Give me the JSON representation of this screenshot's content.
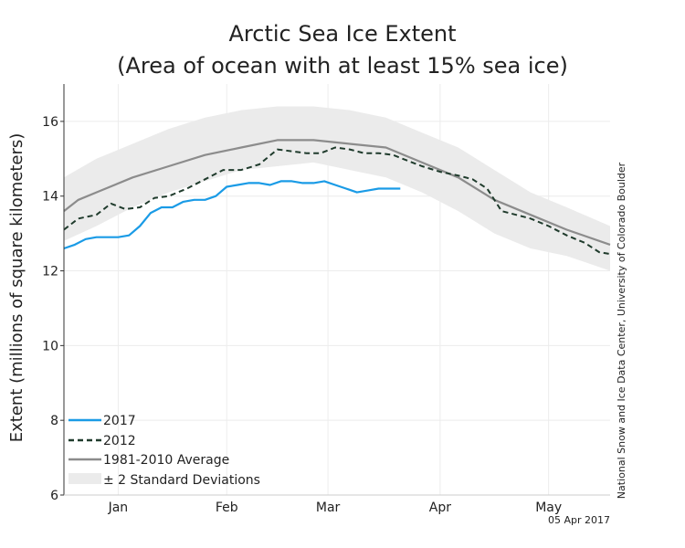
{
  "chart_data": {
    "type": "line",
    "title": "Arctic Sea Ice Extent",
    "subtitle": "(Area of ocean with at least 15% sea ice)",
    "ylabel": "Extent (millions of square kilometers)",
    "xlabel": "",
    "ylim": [
      6,
      17
    ],
    "yticks": [
      6,
      8,
      10,
      12,
      14,
      16
    ],
    "xlim": [
      1,
      152
    ],
    "xticks": [
      {
        "label": "Jan",
        "day": 16
      },
      {
        "label": "Feb",
        "day": 46
      },
      {
        "label": "Mar",
        "day": 74
      },
      {
        "label": "Apr",
        "day": 105
      },
      {
        "label": "May",
        "day": 135
      }
    ],
    "grid": true,
    "legend_position": "bottom-left",
    "series": [
      {
        "name": "± 2 Standard Deviations",
        "kind": "band",
        "color": "#ebebeb",
        "x": [
          1,
          10,
          20,
          30,
          40,
          50,
          60,
          70,
          80,
          90,
          100,
          110,
          120,
          130,
          140,
          152
        ],
        "upper": [
          14.5,
          15.0,
          15.4,
          15.8,
          16.1,
          16.3,
          16.4,
          16.4,
          16.3,
          16.1,
          15.7,
          15.3,
          14.7,
          14.1,
          13.7,
          13.2
        ],
        "lower": [
          12.8,
          13.2,
          13.7,
          14.1,
          14.4,
          14.7,
          14.8,
          14.9,
          14.7,
          14.5,
          14.1,
          13.6,
          13.0,
          12.6,
          12.4,
          12.0
        ]
      },
      {
        "name": "1981-2010 Average",
        "kind": "line",
        "color": "#8c8c8c",
        "x": [
          1,
          5,
          10,
          20,
          30,
          40,
          50,
          60,
          70,
          80,
          90,
          100,
          110,
          120,
          130,
          140,
          152
        ],
        "values": [
          13.6,
          13.9,
          14.1,
          14.5,
          14.8,
          15.1,
          15.3,
          15.5,
          15.5,
          15.4,
          15.3,
          14.9,
          14.5,
          13.9,
          13.5,
          13.1,
          12.7
        ]
      },
      {
        "name": "2012",
        "kind": "dashed",
        "color": "#1f3b2c",
        "x": [
          1,
          5,
          10,
          14,
          18,
          22,
          26,
          30,
          35,
          40,
          45,
          50,
          55,
          60,
          64,
          68,
          72,
          76,
          80,
          84,
          88,
          92,
          96,
          100,
          105,
          110,
          114,
          118,
          122,
          126,
          130,
          135,
          140,
          145,
          149,
          152
        ],
        "values": [
          13.1,
          13.4,
          13.5,
          13.8,
          13.65,
          13.7,
          13.95,
          14.0,
          14.2,
          14.45,
          14.7,
          14.7,
          14.85,
          15.25,
          15.2,
          15.15,
          15.15,
          15.3,
          15.25,
          15.15,
          15.15,
          15.1,
          14.95,
          14.8,
          14.65,
          14.55,
          14.45,
          14.2,
          13.6,
          13.5,
          13.4,
          13.2,
          12.95,
          12.75,
          12.5,
          12.45
        ]
      },
      {
        "name": "2017",
        "kind": "line",
        "color": "#1a9be6",
        "x": [
          1,
          4,
          7,
          10,
          13,
          16,
          19,
          22,
          25,
          28,
          31,
          34,
          37,
          40,
          43,
          46,
          49,
          52,
          55,
          58,
          61,
          64,
          67,
          70,
          73,
          76,
          79,
          82,
          85,
          88,
          91,
          94
        ],
        "values": [
          12.6,
          12.7,
          12.85,
          12.9,
          12.9,
          12.9,
          12.95,
          13.2,
          13.55,
          13.7,
          13.7,
          13.85,
          13.9,
          13.9,
          14.0,
          14.25,
          14.3,
          14.35,
          14.35,
          14.3,
          14.4,
          14.4,
          14.35,
          14.35,
          14.4,
          14.3,
          14.2,
          14.1,
          14.15,
          14.2,
          14.2,
          14.2
        ]
      }
    ],
    "credit": "National Snow and Ice Data Center, University of Colorado Boulder",
    "date_stamp": "05 Apr 2017"
  },
  "legend": {
    "items": [
      {
        "label": "2017",
        "color": "#1a9be6",
        "style": "solid"
      },
      {
        "label": "2012",
        "color": "#1f3b2c",
        "style": "dashed"
      },
      {
        "label": "1981-2010 Average",
        "color": "#8c8c8c",
        "style": "solid"
      },
      {
        "label": "± 2 Standard Deviations",
        "color": "#ebebeb",
        "style": "band"
      }
    ]
  }
}
